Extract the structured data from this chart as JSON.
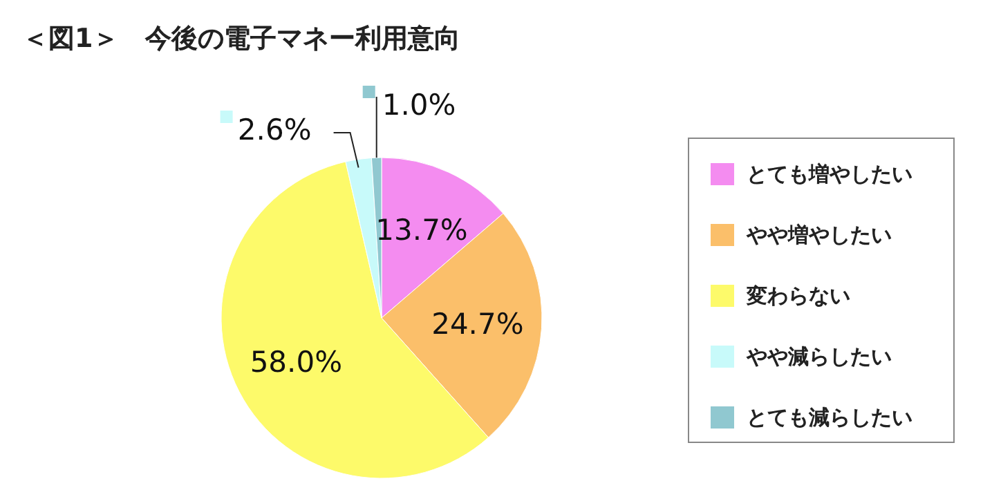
{
  "chart_data": {
    "type": "pie",
    "title": "＜図1＞　今後の電子マネー利用意向",
    "categories": [
      "とても増やしたい",
      "やや増やしたい",
      "変わらない",
      "やや減らしたい",
      "とても減らしたい"
    ],
    "values": [
      13.7,
      24.7,
      58.0,
      2.6,
      1.0
    ],
    "colors": [
      "#f48cf0",
      "#fbbf6a",
      "#fdfa6a",
      "#c8fafa",
      "#90c8d0"
    ],
    "value_labels": [
      "13.7%",
      "24.7%",
      "58.0%",
      "2.6%",
      "1.0%"
    ],
    "legend": "right"
  }
}
